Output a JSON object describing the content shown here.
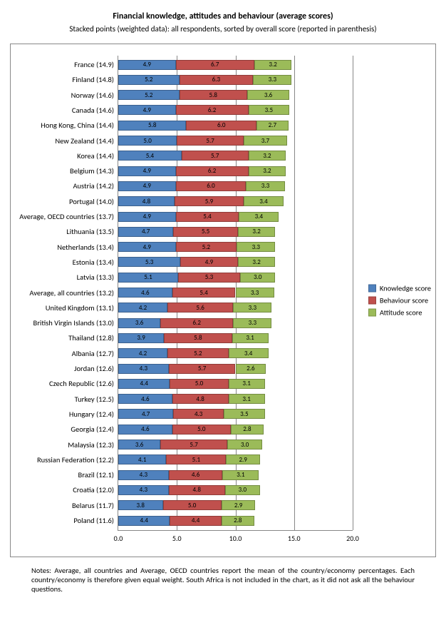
{
  "title": "Financial knowledge, attitudes and behaviour (average scores)",
  "subtitle": "Stacked points (weighted data): all respondents, sorted by overall score (reported in parenthesis)",
  "notes": "Notes: Average, all countries and Average, OECD countries report the mean of the country/economy percentages. Each country/economy is therefore given equal weight.  South Africa is not included in the chart, as it did not ask all the behaviour questions.",
  "legend": [
    {
      "label": "Knowledge score",
      "color": "#4f81bd"
    },
    {
      "label": "Behaviour score",
      "color": "#c0504d"
    },
    {
      "label": "Attitude score",
      "color": "#9bbb59"
    }
  ],
  "chart": {
    "type": "stacked-bar-horizontal",
    "xmin": 0.0,
    "xmax": 20.0,
    "xticks": [
      0.0,
      5.0,
      10.0,
      15.0,
      20.0
    ],
    "xtick_labels": [
      "0.0",
      "5.0",
      "10.0",
      "15.0",
      "20.0"
    ],
    "row_spacing": 21.3,
    "first_row_top": 4,
    "plot_width_pct_per_unit": 5.0,
    "background": "#ffffff",
    "grid_color": "#888888",
    "colors": {
      "knowledge": "#4f81bd",
      "behaviour": "#c0504d",
      "attitude": "#9bbb59"
    },
    "value_label_fontsize": 9,
    "axis_label_fontsize": 10,
    "rows": [
      {
        "label": "France (14.9)",
        "k": 4.9,
        "b": 6.7,
        "a": 3.2
      },
      {
        "label": "Finland (14.8)",
        "k": 5.2,
        "b": 6.3,
        "a": 3.3
      },
      {
        "label": "Norway (14.6)",
        "k": 5.2,
        "b": 5.8,
        "a": 3.6
      },
      {
        "label": "Canada (14.6)",
        "k": 4.9,
        "b": 6.2,
        "a": 3.5
      },
      {
        "label": "Hong Kong, China (14.4)",
        "k": 5.8,
        "b": 6.0,
        "a": 2.7
      },
      {
        "label": "New Zealand (14.4)",
        "k": 5.0,
        "b": 5.7,
        "a": 3.7
      },
      {
        "label": "Korea (14.4)",
        "k": 5.4,
        "b": 5.7,
        "a": 3.2
      },
      {
        "label": "Belgium (14.3)",
        "k": 4.9,
        "b": 6.2,
        "a": 3.2
      },
      {
        "label": "Austria (14.2)",
        "k": 4.9,
        "b": 6.0,
        "a": 3.3
      },
      {
        "label": "Portugal (14.0)",
        "k": 4.8,
        "b": 5.9,
        "a": 3.4
      },
      {
        "label": "Average, OECD countries (13.7)",
        "k": 4.9,
        "b": 5.4,
        "a": 3.4
      },
      {
        "label": "Lithuania (13.5)",
        "k": 4.7,
        "b": 5.5,
        "a": 3.2
      },
      {
        "label": "Netherlands (13.4)",
        "k": 4.9,
        "b": 5.2,
        "a": 3.3
      },
      {
        "label": "Estonia (13.4)",
        "k": 5.3,
        "b": 4.9,
        "a": 3.2
      },
      {
        "label": "Latvia (13.3)",
        "k": 5.1,
        "b": 5.3,
        "a": 3.0
      },
      {
        "label": "Average, all countries (13.2)",
        "k": 4.6,
        "b": 5.4,
        "a": 3.3
      },
      {
        "label": "United Kingdom (13.1)",
        "k": 4.2,
        "b": 5.6,
        "a": 3.3
      },
      {
        "label": "British Virgin Islands (13.0)",
        "k": 3.6,
        "b": 6.2,
        "a": 3.3
      },
      {
        "label": "Thailand (12.8)",
        "k": 3.9,
        "b": 5.8,
        "a": 3.1
      },
      {
        "label": "Albania (12.7)",
        "k": 4.2,
        "b": 5.2,
        "a": 3.4
      },
      {
        "label": "Jordan (12.6)",
        "k": 4.3,
        "b": 5.7,
        "a": 2.6
      },
      {
        "label": "Czech Republic (12.6)",
        "k": 4.4,
        "b": 5.0,
        "a": 3.1
      },
      {
        "label": "Turkey (12.5)",
        "k": 4.6,
        "b": 4.8,
        "a": 3.1
      },
      {
        "label": "Hungary (12.4)",
        "k": 4.7,
        "b": 4.3,
        "a": 3.5
      },
      {
        "label": "Georgia (12.4)",
        "k": 4.6,
        "b": 5.0,
        "a": 2.8
      },
      {
        "label": "Malaysia (12.3)",
        "k": 3.6,
        "b": 5.7,
        "a": 3.0
      },
      {
        "label": "Russian Federation (12.2)",
        "k": 4.1,
        "b": 5.1,
        "a": 2.9
      },
      {
        "label": "Brazil (12.1)",
        "k": 4.3,
        "b": 4.6,
        "a": 3.1
      },
      {
        "label": "Croatia (12.0)",
        "k": 4.3,
        "b": 4.8,
        "a": 3.0
      },
      {
        "label": "Belarus (11.7)",
        "k": 3.8,
        "b": 5.0,
        "a": 2.9
      },
      {
        "label": "Poland (11.6)",
        "k": 4.4,
        "b": 4.4,
        "a": 2.8
      }
    ]
  }
}
